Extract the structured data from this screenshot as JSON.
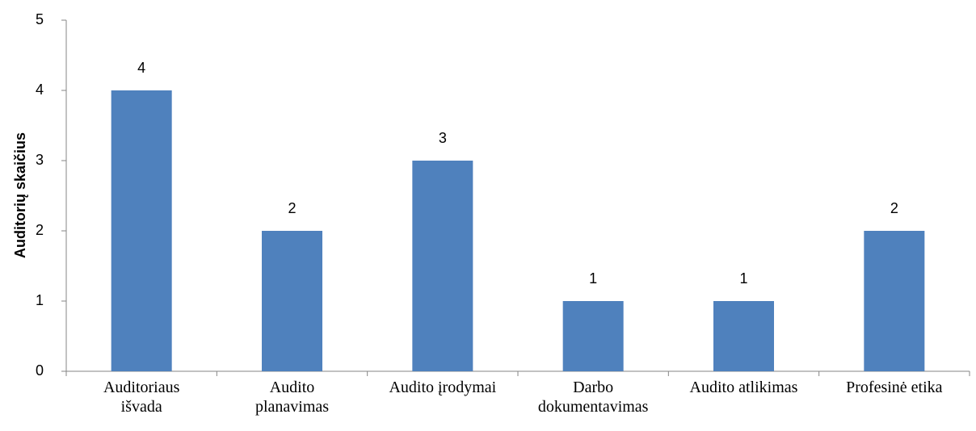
{
  "chart_data": {
    "type": "bar",
    "y_label": "Auditorių skaičius",
    "categories": [
      "Auditoriaus\nišvada",
      "Audito\nplanavimas",
      "Audito įrodymai",
      "Darbo\ndokumentavimas",
      "Audito atlikimas",
      "Profesinė etika"
    ],
    "values": [
      4,
      2,
      3,
      1,
      1,
      2
    ],
    "color": "#4f81bd",
    "ylim": [
      0,
      5
    ],
    "yticks": [
      0,
      1,
      2,
      3,
      4,
      5
    ],
    "grid": false
  }
}
